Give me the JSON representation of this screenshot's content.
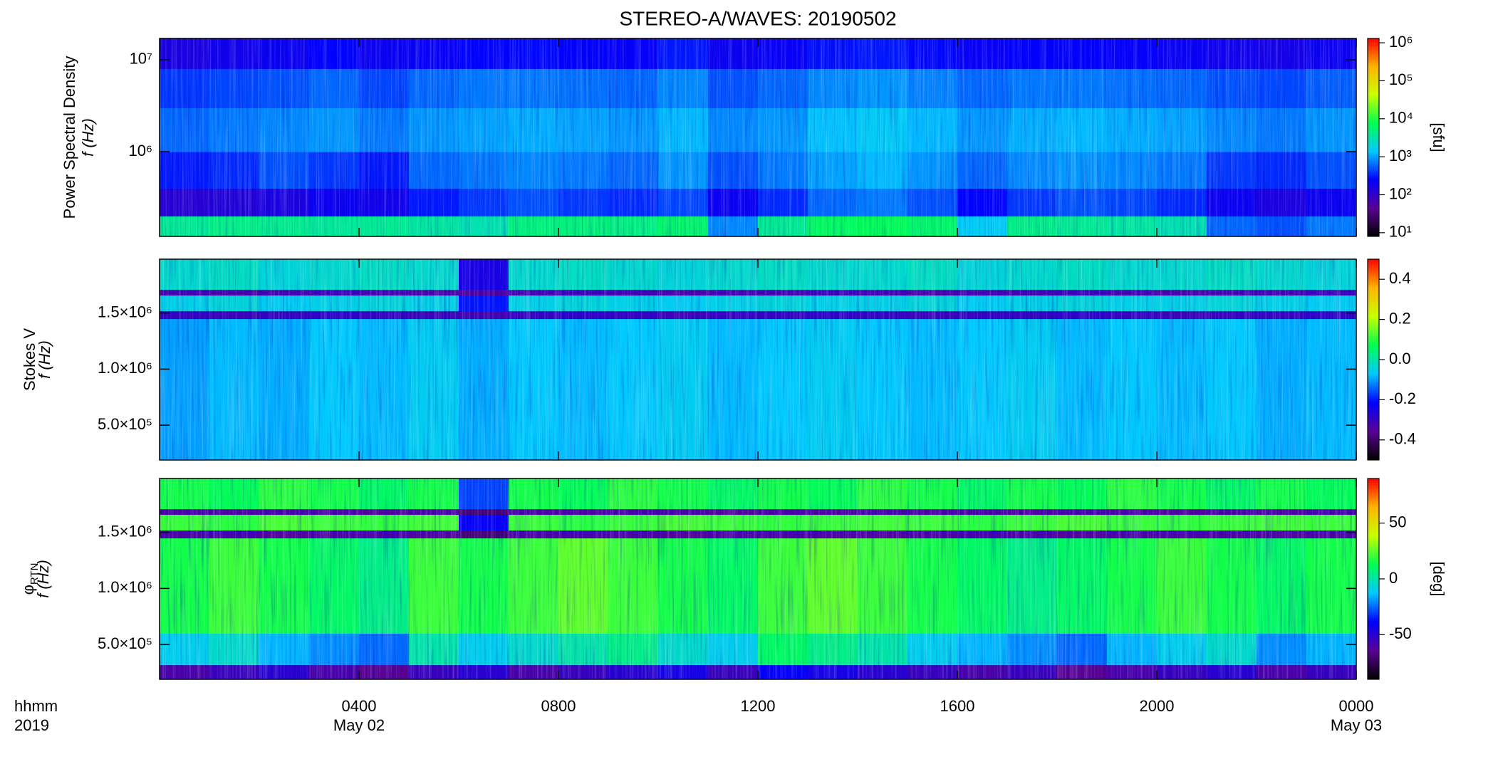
{
  "chart_data": {
    "type": "spectrogram",
    "title": "STEREO-A/WAVES: 20190502",
    "x_axis_labels": [
      "hhmm",
      "2019"
    ],
    "xlim": [
      0,
      24
    ],
    "xticks": [
      {
        "value": 4,
        "label": "0400"
      },
      {
        "value": 8,
        "label": "0800"
      },
      {
        "value": 12,
        "label": "1200"
      },
      {
        "value": 16,
        "label": "1600"
      },
      {
        "value": 20,
        "label": "2000"
      },
      {
        "value": 24,
        "label": "0000"
      }
    ],
    "x_date_labels": [
      {
        "value": 4,
        "label": "May 02"
      },
      {
        "value": 24,
        "label": "May 03"
      }
    ],
    "x_edges": [
      0,
      1,
      2,
      3,
      4,
      5,
      6,
      7,
      8,
      9,
      10,
      11,
      12,
      13,
      14,
      15,
      16,
      17,
      18,
      19,
      20,
      21,
      22,
      23,
      24
    ],
    "colormap": [
      "#000000",
      "#5a0096",
      "#0000ff",
      "#00c8ff",
      "#00ff50",
      "#c8ff00",
      "#ffb400",
      "#ff0000"
    ],
    "panels": [
      {
        "ylabel": "Power Spectral Density",
        "ylabel2": "f (Hz)",
        "yscale": "log",
        "ylim": [
          120000,
          17000000
        ],
        "yticks": [
          {
            "value": 1000000,
            "label": "10⁶"
          },
          {
            "value": 10000000,
            "label": "10⁷"
          }
        ],
        "y_edges": [
          120000,
          200000,
          400000,
          1000000,
          3000000,
          8000000,
          17000000
        ],
        "colorbar": {
          "label": "[sfu]",
          "scale": "log",
          "clim": [
            8,
            1300000
          ],
          "ticks": [
            {
              "value": 10,
              "label": "10¹"
            },
            {
              "value": 100,
              "label": "10²"
            },
            {
              "value": 1000,
              "label": "10³"
            },
            {
              "value": 10000,
              "label": "10⁴"
            },
            {
              "value": 100000,
              "label": "10⁵"
            },
            {
              "value": 1000000,
              "label": "10⁶"
            }
          ]
        },
        "z": [
          [
            4000,
            4500,
            4200,
            3800,
            4000,
            3500,
            3000,
            5000,
            5200,
            4800,
            6000,
            800,
            4000,
            6500,
            7000,
            6000,
            1500,
            4500,
            4000,
            3500,
            3000,
            600,
            500,
            700
          ],
          [
            120,
            130,
            150,
            200,
            180,
            300,
            400,
            500,
            400,
            350,
            450,
            200,
            350,
            600,
            700,
            500,
            250,
            400,
            500,
            450,
            350,
            200,
            150,
            200
          ],
          [
            300,
            350,
            500,
            400,
            300,
            600,
            700,
            800,
            700,
            600,
            900,
            500,
            700,
            1000,
            1200,
            900,
            600,
            800,
            900,
            800,
            700,
            400,
            350,
            500
          ],
          [
            600,
            700,
            800,
            900,
            700,
            900,
            1000,
            1100,
            1000,
            900,
            1200,
            800,
            900,
            1300,
            1500,
            1200,
            900,
            1100,
            1200,
            1100,
            1000,
            800,
            700,
            900
          ],
          [
            400,
            450,
            500,
            600,
            450,
            600,
            700,
            700,
            650,
            600,
            800,
            500,
            600,
            800,
            900,
            750,
            600,
            700,
            700,
            650,
            600,
            500,
            450,
            550
          ],
          [
            150,
            180,
            200,
            250,
            200,
            220,
            250,
            260,
            240,
            230,
            300,
            200,
            220,
            280,
            300,
            260,
            220,
            240,
            240,
            230,
            210,
            190,
            170,
            200
          ]
        ]
      },
      {
        "ylabel": "Stokes V",
        "ylabel2": "f (Hz)",
        "yscale": "linear",
        "ylim": [
          190000,
          1980000
        ],
        "yticks": [
          {
            "value": 500000,
            "label": "5.0×10⁵"
          },
          {
            "value": 1000000,
            "label": "1.0×10⁶"
          },
          {
            "value": 1500000,
            "label": "1.5×10⁶"
          }
        ],
        "y_edges": [
          190000,
          1450000,
          1520000,
          1660000,
          1710000,
          1980000
        ],
        "colorbar": {
          "scale": "linear",
          "clim": [
            -0.5,
            0.5
          ],
          "ticks": [
            -0.4,
            -0.2,
            {
              "value": 0,
              "label": "0.0"
            },
            0.2,
            0.4
          ]
        },
        "z": [
          [
            -0.1,
            -0.08,
            -0.09,
            -0.07,
            -0.08,
            -0.06,
            -0.09,
            -0.07,
            -0.08,
            -0.07,
            -0.06,
            -0.08,
            -0.07,
            -0.06,
            -0.07,
            -0.08,
            -0.07,
            -0.06,
            -0.08,
            -0.07,
            -0.08,
            -0.07,
            -0.09,
            -0.08
          ],
          [
            -0.3,
            -0.31,
            -0.3,
            -0.29,
            -0.3,
            -0.31,
            -0.32,
            -0.3,
            -0.29,
            -0.3,
            -0.31,
            -0.3,
            -0.3,
            -0.29,
            -0.3,
            -0.31,
            -0.3,
            -0.3,
            -0.29,
            -0.3,
            -0.31,
            -0.3,
            -0.3,
            -0.29
          ],
          [
            -0.05,
            -0.04,
            -0.06,
            -0.05,
            -0.04,
            -0.05,
            -0.2,
            -0.05,
            -0.04,
            -0.05,
            -0.06,
            -0.05,
            -0.04,
            -0.05,
            -0.05,
            -0.04,
            -0.06,
            -0.05,
            -0.04,
            -0.05,
            -0.05,
            -0.04,
            -0.05,
            -0.06
          ],
          [
            -0.32,
            -0.33,
            -0.32,
            -0.31,
            -0.32,
            -0.33,
            -0.34,
            -0.32,
            -0.31,
            -0.32,
            -0.33,
            -0.32,
            -0.32,
            -0.31,
            -0.32,
            -0.33,
            -0.32,
            -0.32,
            -0.31,
            -0.32,
            -0.33,
            -0.32,
            -0.32,
            -0.31
          ],
          [
            -0.03,
            -0.02,
            -0.04,
            -0.03,
            -0.02,
            -0.03,
            -0.25,
            -0.03,
            -0.02,
            -0.03,
            -0.04,
            -0.03,
            -0.02,
            -0.03,
            -0.03,
            -0.02,
            -0.04,
            -0.03,
            -0.02,
            -0.03,
            -0.03,
            -0.02,
            -0.03,
            -0.04
          ]
        ]
      },
      {
        "ylabel": "φ",
        "ylabel_sub": "RTN",
        "ylabel2": "f (Hz)",
        "yscale": "linear",
        "ylim": [
          190000,
          1980000
        ],
        "yticks": [
          {
            "value": 500000,
            "label": "5.0×10⁵"
          },
          {
            "value": 1000000,
            "label": "1.0×10⁶"
          },
          {
            "value": 1500000,
            "label": "1.5×10⁶"
          }
        ],
        "y_edges": [
          190000,
          320000,
          600000,
          1450000,
          1520000,
          1660000,
          1710000,
          1980000
        ],
        "colorbar": {
          "label": "[deg]",
          "scale": "linear",
          "clim": [
            -90,
            90
          ],
          "ticks": [
            -50,
            0,
            50
          ]
        },
        "z": [
          [
            -60,
            -55,
            -50,
            -60,
            -65,
            -55,
            -50,
            -60,
            -55,
            -50,
            -45,
            -55,
            -40,
            -45,
            -50,
            -55,
            -60,
            -55,
            -65,
            -60,
            -55,
            -50,
            -60,
            -55
          ],
          [
            -10,
            -5,
            -15,
            -20,
            -25,
            0,
            -10,
            -5,
            0,
            5,
            -5,
            -10,
            10,
            5,
            0,
            -10,
            -15,
            -20,
            -25,
            -15,
            -10,
            -5,
            -20,
            -15
          ],
          [
            15,
            20,
            15,
            10,
            5,
            20,
            15,
            20,
            25,
            20,
            15,
            10,
            20,
            25,
            20,
            15,
            10,
            5,
            10,
            15,
            20,
            15,
            10,
            15
          ],
          [
            -60,
            -58,
            -62,
            -60,
            -59,
            -61,
            -70,
            -60,
            -58,
            -60,
            -62,
            -60,
            -59,
            -60,
            -61,
            -60,
            -58,
            -60,
            -62,
            -60,
            -59,
            -60,
            -61,
            -60
          ],
          [
            20,
            18,
            22,
            20,
            19,
            21,
            -40,
            20,
            18,
            20,
            22,
            20,
            19,
            20,
            21,
            20,
            18,
            20,
            22,
            20,
            19,
            20,
            21,
            20
          ],
          [
            -60,
            -61,
            -59,
            -60,
            -62,
            -60,
            -70,
            -60,
            -61,
            -59,
            -60,
            -62,
            -60,
            -61,
            -59,
            -60,
            -60,
            -61,
            -59,
            -60,
            -62,
            -60,
            -61,
            -59
          ],
          [
            15,
            12,
            18,
            15,
            10,
            15,
            -30,
            15,
            12,
            18,
            15,
            10,
            15,
            12,
            18,
            15,
            10,
            15,
            12,
            18,
            15,
            10,
            15,
            12
          ]
        ]
      }
    ]
  }
}
